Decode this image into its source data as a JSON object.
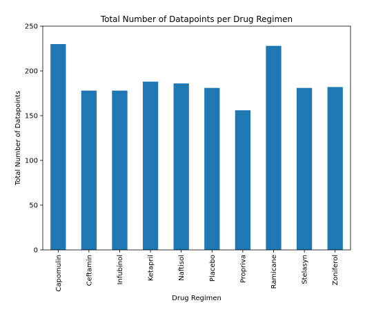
{
  "chart_data": {
    "type": "bar",
    "title": "Total Number of Datapoints per Drug Regimen",
    "xlabel": "Drug Regimen",
    "ylabel": "Total Number of Datapoints",
    "categories": [
      "Capomulin",
      "Ceftamin",
      "Infubinol",
      "Ketapril",
      "Naftisol",
      "Placebo",
      "Propriva",
      "Ramicane",
      "Stelasyn",
      "Zoniferol"
    ],
    "values": [
      230,
      178,
      178,
      188,
      186,
      181,
      156,
      228,
      181,
      182
    ],
    "ylim": [
      0,
      250
    ],
    "yticks": [
      0,
      50,
      100,
      150,
      200,
      250
    ],
    "bar_color": "#1f77b4",
    "grid": false,
    "legend": "none"
  }
}
